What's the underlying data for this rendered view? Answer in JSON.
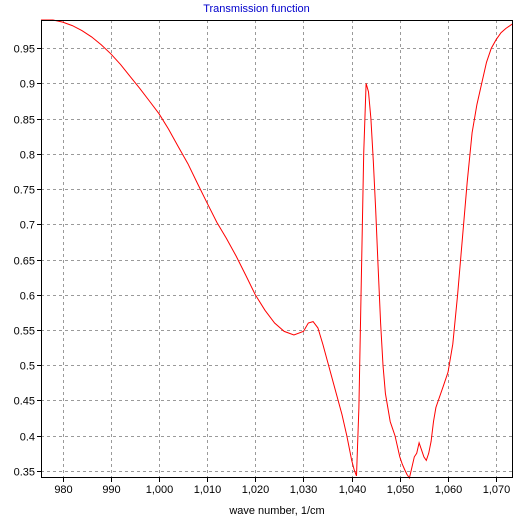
{
  "chart_data": {
    "type": "line",
    "title": "Transmission function",
    "xlabel": "wave number, 1/cm",
    "ylabel": "",
    "xlim": [
      975.5,
      1073.5
    ],
    "ylim": [
      0.34,
      0.99
    ],
    "xticks": [
      980,
      990,
      1000,
      1010,
      1020,
      1030,
      1040,
      1050,
      1060,
      1070
    ],
    "xtick_labels": [
      "980",
      "990",
      "1,000",
      "1,010",
      "1,020",
      "1,030",
      "1,040",
      "1,050",
      "1,060",
      "1,070"
    ],
    "yticks": [
      0.35,
      0.4,
      0.45,
      0.5,
      0.55,
      0.6,
      0.65,
      0.7,
      0.75,
      0.8,
      0.85,
      0.9,
      0.95
    ],
    "ytick_labels": [
      "0.35",
      "0.4",
      "0.45",
      "0.5",
      "0.55",
      "0.6",
      "0.65",
      "0.7",
      "0.75",
      "0.8",
      "0.85",
      "0.9",
      "0.95"
    ],
    "grid": true,
    "series": [
      {
        "color": "#ff0000",
        "x": [
          975.5,
          978,
          980,
          982,
          984,
          986,
          988,
          990,
          992,
          994,
          996,
          998,
          1000,
          1002,
          1004,
          1006,
          1008,
          1010,
          1012,
          1014,
          1016,
          1018,
          1020,
          1022,
          1024,
          1026,
          1028,
          1030,
          1031,
          1032,
          1033,
          1034,
          1035,
          1036,
          1037,
          1038,
          1039,
          1040,
          1040.5,
          1041,
          1041.5,
          1042,
          1042.5,
          1043,
          1043.5,
          1044,
          1044.5,
          1045,
          1045.5,
          1046,
          1046.5,
          1047,
          1047.5,
          1048,
          1048.5,
          1049,
          1049.5,
          1050,
          1050.5,
          1051,
          1051.5,
          1052,
          1052.5,
          1053,
          1053.5,
          1054,
          1054.5,
          1055,
          1055.5,
          1056,
          1056.5,
          1057,
          1057.5,
          1058,
          1059,
          1060,
          1061,
          1062,
          1063,
          1064,
          1065,
          1066,
          1067,
          1068,
          1069,
          1070,
          1071,
          1072,
          1073.5
        ],
        "y": [
          0.99,
          0.99,
          0.987,
          0.982,
          0.975,
          0.966,
          0.955,
          0.942,
          0.927,
          0.91,
          0.893,
          0.875,
          0.857,
          0.835,
          0.81,
          0.786,
          0.758,
          0.73,
          0.703,
          0.68,
          0.655,
          0.628,
          0.6,
          0.578,
          0.56,
          0.548,
          0.543,
          0.548,
          0.56,
          0.562,
          0.553,
          0.53,
          0.505,
          0.48,
          0.455,
          0.43,
          0.4,
          0.365,
          0.352,
          0.343,
          0.44,
          0.62,
          0.8,
          0.9,
          0.888,
          0.85,
          0.79,
          0.72,
          0.64,
          0.56,
          0.5,
          0.46,
          0.44,
          0.42,
          0.41,
          0.4,
          0.385,
          0.37,
          0.36,
          0.352,
          0.345,
          0.34,
          0.355,
          0.37,
          0.375,
          0.39,
          0.38,
          0.37,
          0.365,
          0.375,
          0.392,
          0.42,
          0.44,
          0.45,
          0.47,
          0.49,
          0.53,
          0.6,
          0.68,
          0.76,
          0.83,
          0.87,
          0.9,
          0.93,
          0.95,
          0.962,
          0.972,
          0.978,
          0.985
        ]
      }
    ]
  }
}
